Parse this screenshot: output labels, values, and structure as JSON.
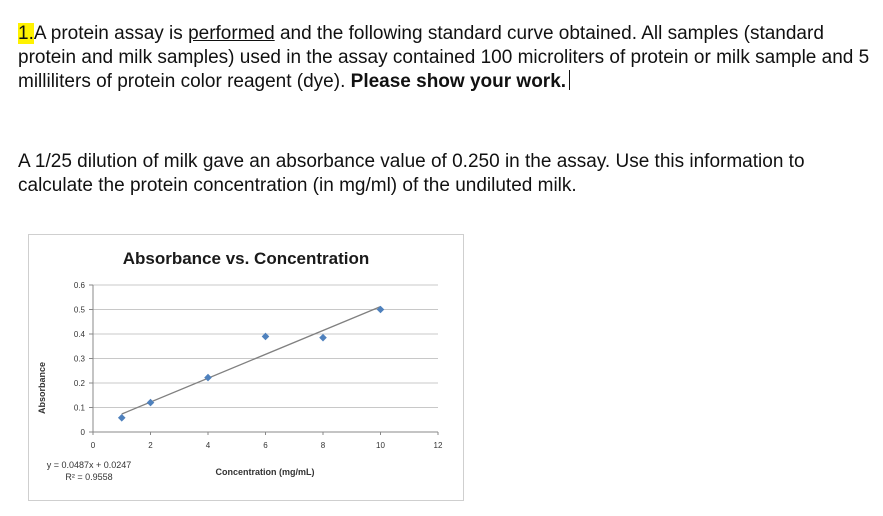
{
  "question": {
    "number": "1.",
    "part1": "A protein assay is ",
    "underlined": "performed",
    "part2": " and the following standard curve obtained. All samples (standard protein and milk samples) used in the assay contained 100 microliters of protein or milk sample and 5 milliliters of protein color reagent (dye). ",
    "bold": "Please show your work."
  },
  "paragraph2": "A 1/25 dilution of milk gave an absorbance value of 0.250 in the assay. Use this information to calculate the protein concentration (in mg/ml) of the undiluted milk.",
  "chart_data": {
    "type": "scatter",
    "title": "Absorbance vs. Concentration",
    "xlabel": "Concentration (mg/mL)",
    "ylabel": "Absorbance",
    "x_ticks": [
      "0",
      "2",
      "4",
      "6",
      "8",
      "10",
      "12"
    ],
    "y_ticks": [
      "0",
      "0.1",
      "0.2",
      "0.3",
      "0.4",
      "0.5",
      "0.6"
    ],
    "xlim": [
      0,
      12
    ],
    "ylim": [
      0,
      0.6
    ],
    "grid": true,
    "points": [
      {
        "x": 1,
        "y": 0.058
      },
      {
        "x": 2,
        "y": 0.12
      },
      {
        "x": 4,
        "y": 0.222
      },
      {
        "x": 6,
        "y": 0.39
      },
      {
        "x": 8,
        "y": 0.385
      },
      {
        "x": 10,
        "y": 0.5
      }
    ],
    "trendline": {
      "slope": 0.0487,
      "intercept": 0.0247,
      "x_range": [
        1,
        10
      ]
    },
    "equation": "y = 0.0487x + 0.0247",
    "r_squared": "R² = 0.9558",
    "colors": {
      "marker": "#4f81bd",
      "trendline": "#808080",
      "grid": "#c8c8c8"
    }
  }
}
